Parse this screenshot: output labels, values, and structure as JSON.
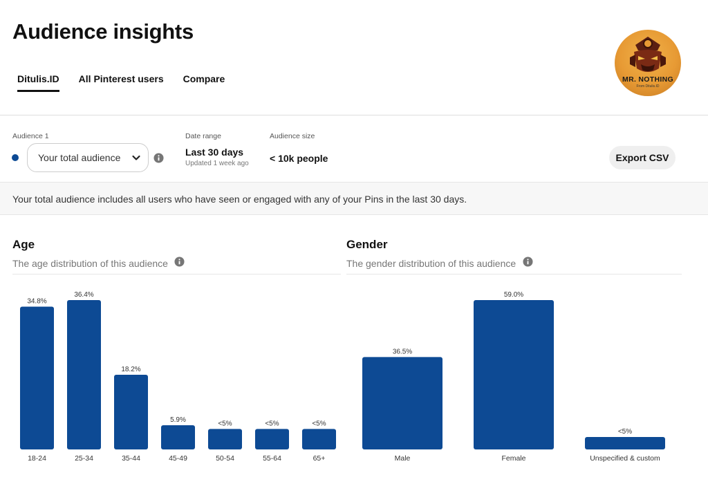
{
  "page": {
    "title": "Audience insights"
  },
  "tabs": [
    {
      "label": "Ditulis.ID",
      "active": true
    },
    {
      "label": "All Pinterest users",
      "active": false
    },
    {
      "label": "Compare",
      "active": false
    }
  ],
  "profile": {
    "avatar_icon": "samurai-mask-logo",
    "name": "MR. NOTHING",
    "subtitle": "From Ditulis.ID"
  },
  "filters": {
    "audience_label": "Audience 1",
    "audience_value": "Your total audience",
    "audience_dot_color": "#0d4a94",
    "date_label": "Date range",
    "date_value": "Last 30 days",
    "date_updated": "Updated 1 week ago",
    "size_label": "Audience size",
    "size_value": "< 10k people",
    "export_label": "Export CSV"
  },
  "banner": {
    "text": "Your total audience includes all users who have seen or engaged with any of your Pins in the last 30 days."
  },
  "age": {
    "title": "Age",
    "desc": "The age distribution of this audience"
  },
  "gender": {
    "title": "Gender",
    "desc": "The gender distribution of this audience"
  },
  "colors": {
    "bar": "#0d4a94"
  },
  "chart_data": [
    {
      "type": "bar",
      "title": "Age",
      "categories": [
        "18-24",
        "25-34",
        "35-44",
        "45-49",
        "50-54",
        "55-64",
        "65+"
      ],
      "values": [
        34.8,
        36.4,
        18.2,
        5.9,
        5,
        5,
        5
      ],
      "labels": [
        "34.8%",
        "36.4%",
        "18.2%",
        "5.9%",
        "<5%",
        "<5%",
        "<5%"
      ],
      "ylim": [
        0,
        36.4
      ],
      "grid": false
    },
    {
      "type": "bar",
      "title": "Gender",
      "categories": [
        "Male",
        "Female",
        "Unspecified & custom"
      ],
      "values": [
        36.5,
        59.0,
        3
      ],
      "labels": [
        "36.5%",
        "59.0%",
        "<5%"
      ],
      "ylim": [
        0,
        59.0
      ],
      "grid": false
    }
  ]
}
